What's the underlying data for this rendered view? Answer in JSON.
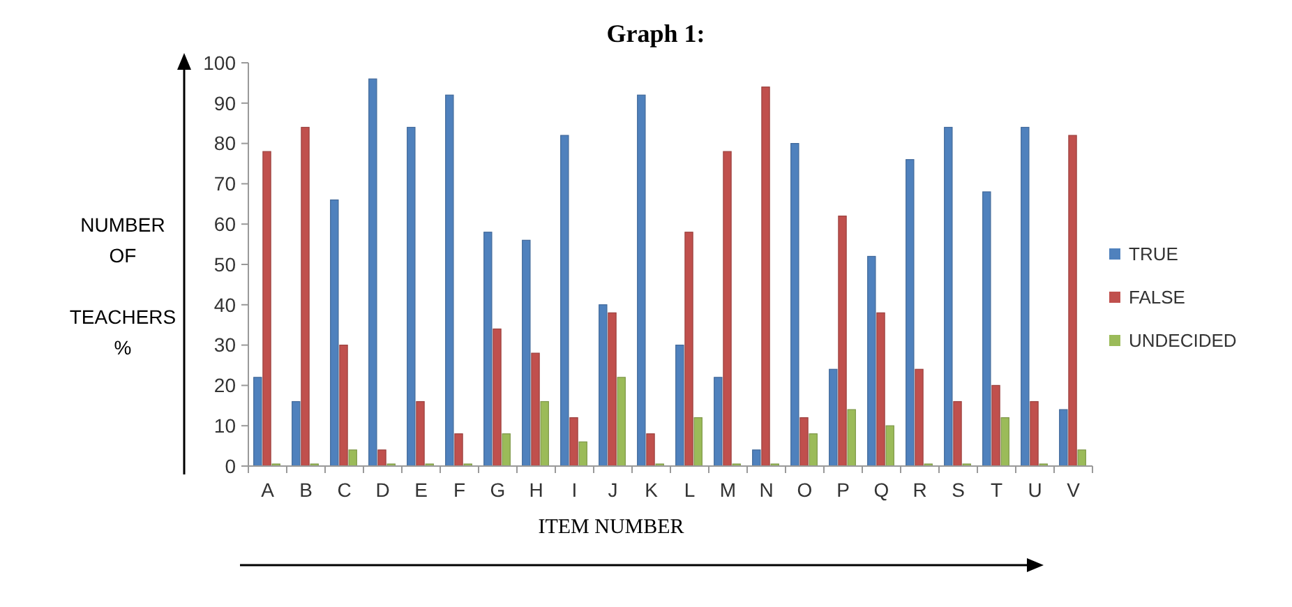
{
  "chart_data": {
    "type": "bar",
    "title": "Graph 1:",
    "xlabel": "ITEM NUMBER",
    "ylabel": "NUMBER\nOF\n\nTEACHERS\n%",
    "categories": [
      "A",
      "B",
      "C",
      "D",
      "E",
      "F",
      "G",
      "H",
      "I",
      "J",
      "K",
      "L",
      "M",
      "N",
      "O",
      "P",
      "Q",
      "R",
      "S",
      "T",
      "U",
      "V"
    ],
    "series": [
      {
        "name": "TRUE",
        "color": "#4f81bd",
        "values": [
          22,
          16,
          66,
          96,
          84,
          92,
          58,
          56,
          82,
          40,
          92,
          30,
          22,
          4,
          80,
          24,
          52,
          76,
          84,
          68,
          84,
          14
        ]
      },
      {
        "name": "FALSE",
        "color": "#c0504d",
        "values": [
          78,
          84,
          30,
          4,
          16,
          8,
          34,
          28,
          12,
          38,
          8,
          58,
          78,
          94,
          12,
          62,
          38,
          24,
          16,
          20,
          16,
          82
        ]
      },
      {
        "name": "UNDECIDED",
        "color": "#9bbb59",
        "values": [
          0,
          0,
          4,
          0,
          0,
          0,
          8,
          16,
          6,
          22,
          0,
          12,
          0,
          0,
          8,
          14,
          10,
          0,
          0,
          12,
          0,
          4
        ]
      }
    ],
    "ylim": [
      0,
      100
    ],
    "yticks": [
      0,
      10,
      20,
      30,
      40,
      50,
      60,
      70,
      80,
      90,
      100
    ],
    "grid": false,
    "legend": "right"
  }
}
